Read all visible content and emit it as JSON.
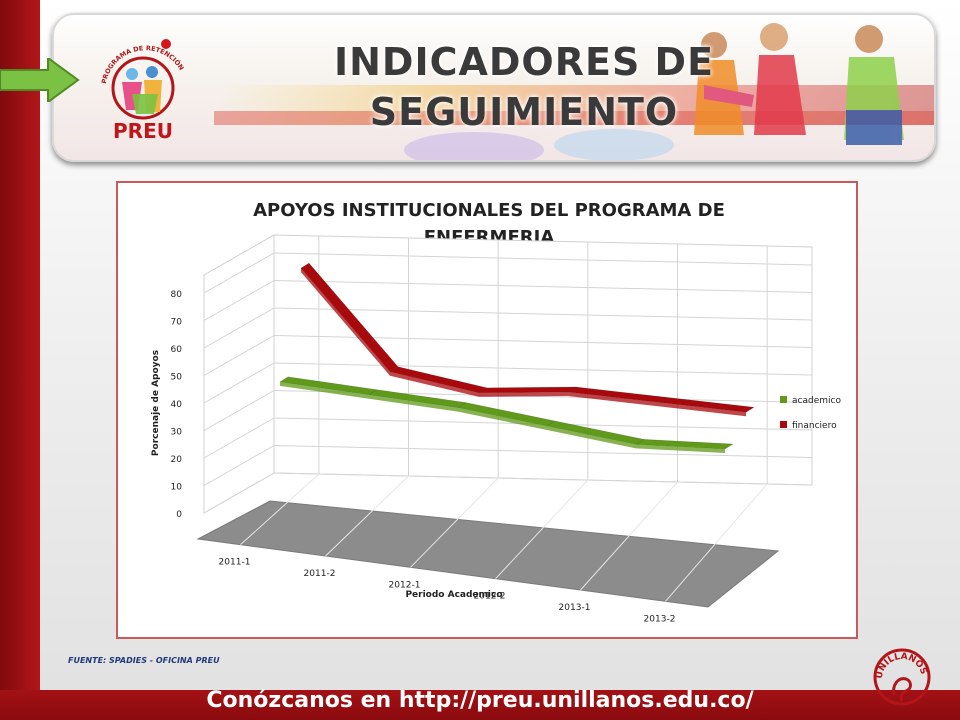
{
  "header": {
    "title_line1": "INDICADORES DE",
    "title_line2": "SEGUIMIENTO",
    "logo_text": "PREU",
    "logo_arc_text": "PROGRAMA DE RETENCIÓN ESTUDIANTIL UNILLANISTA"
  },
  "source_note": "FUENTE: SPADIES - OFICINA PREU",
  "footer": {
    "text": "Conózcanos en http://preu.unillanos.edu.co/"
  },
  "uni_logo_text": "UNILLANOS",
  "colors": {
    "academico": "#5f9a1a",
    "financiero": "#a8090d",
    "floor": "#8c8c8c",
    "brand_red": "#9c0f12"
  },
  "chart_data": {
    "type": "line",
    "title_line1": "APOYOS INSTITUCIONALES DEL PROGRAMA DE",
    "title_line2": "ENFERMERIA",
    "xlabel": "Periodo Academico",
    "ylabel": "Porcenaje de Apoyos",
    "ylim": [
      0,
      80
    ],
    "yticks": [
      "0",
      "10",
      "20",
      "30",
      "40",
      "50",
      "60",
      "70",
      "80"
    ],
    "categories": [
      "2011-1",
      "2011-2",
      "2012-1",
      "2012-2",
      "2013-1",
      "2013-2"
    ],
    "series": [
      {
        "name": "academico",
        "values": [
          43,
          42,
          41,
          38,
          35,
          37
        ]
      },
      {
        "name": "financiero",
        "values": [
          80,
          46,
          42,
          46,
          46,
          46
        ]
      }
    ],
    "legend": "right",
    "grid": true
  }
}
